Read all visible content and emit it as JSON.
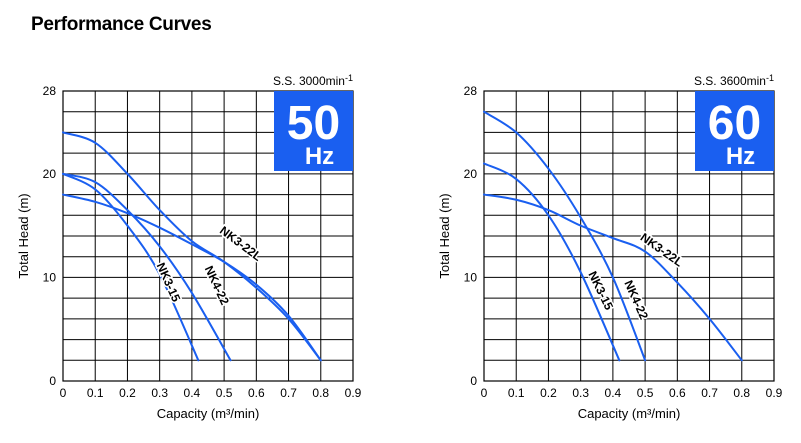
{
  "page": {
    "title": "Performance Curves"
  },
  "chart_data": [
    {
      "type": "line",
      "speed_label": "S.S. 3000min-1",
      "frequency_badge": {
        "value": "50",
        "unit": "Hz",
        "color": "#1a5ff0"
      },
      "xlabel": "Capacity (m³/min)",
      "ylabel": "Total Head (m)",
      "xlim": [
        0,
        0.9
      ],
      "ylim": [
        0,
        28
      ],
      "x_ticks": [
        "0",
        "0.1",
        "0.2",
        "0.3",
        "0.4",
        "0.5",
        "0.6",
        "0.7",
        "0.8",
        "0.9"
      ],
      "y_ticks": [
        {
          "value": 0,
          "label": "0"
        },
        {
          "value": 10,
          "label": "10"
        },
        {
          "value": 20,
          "label": "20"
        },
        {
          "value": 28,
          "label": "28"
        }
      ],
      "grid": true,
      "line_color": "#1a5ff0",
      "series": [
        {
          "name": "NK3-15",
          "label_at": [
            0.325,
            9.5
          ],
          "label_angle": 66,
          "x": [
            0,
            0.1,
            0.2,
            0.3,
            0.42
          ],
          "y": [
            20,
            18.5,
            15,
            10.3,
            2
          ]
        },
        {
          "name": "NK4-22",
          "label_at": [
            0.475,
            9.2
          ],
          "label_angle": 65,
          "x": [
            0,
            0.1,
            0.2,
            0.3,
            0.4,
            0.52
          ],
          "y": [
            20,
            19.2,
            16.5,
            13,
            8.5,
            2
          ]
        },
        {
          "name": "NK3-22L",
          "label_at": [
            0.55,
            13.2
          ],
          "label_angle": 37,
          "x": [
            0,
            0.1,
            0.2,
            0.3,
            0.4,
            0.5,
            0.6,
            0.7,
            0.8
          ],
          "y": [
            24,
            23,
            20,
            16.5,
            13.5,
            11.5,
            9,
            6,
            2
          ]
        },
        {
          "name": "",
          "x": [
            0,
            0.1,
            0.2,
            0.3,
            0.4,
            0.5,
            0.6,
            0.7,
            0.8
          ],
          "y": [
            18,
            17.3,
            16.2,
            14.8,
            13.2,
            11.5,
            9.3,
            6.3,
            2
          ]
        }
      ]
    },
    {
      "type": "line",
      "speed_label": "S.S. 3600min-1",
      "frequency_badge": {
        "value": "60",
        "unit": "Hz",
        "color": "#1a5ff0"
      },
      "xlabel": "Capacity (m³/min)",
      "ylabel": "Total Head (m)",
      "xlim": [
        0,
        0.9
      ],
      "ylim": [
        0,
        28
      ],
      "x_ticks": [
        "0",
        "0.1",
        "0.2",
        "0.3",
        "0.4",
        "0.5",
        "0.6",
        "0.7",
        "0.8",
        "0.9"
      ],
      "y_ticks": [
        {
          "value": 0,
          "label": "0"
        },
        {
          "value": 10,
          "label": "10"
        },
        {
          "value": 20,
          "label": "20"
        },
        {
          "value": 28,
          "label": "28"
        }
      ],
      "grid": true,
      "line_color": "#1a5ff0",
      "series": [
        {
          "name": "NK3-15",
          "label_at": [
            0.36,
            8.7
          ],
          "label_angle": 64,
          "x": [
            0,
            0.1,
            0.2,
            0.3,
            0.42
          ],
          "y": [
            21,
            19.5,
            16,
            10.5,
            2
          ]
        },
        {
          "name": "NK4-22",
          "label_at": [
            0.47,
            7.8
          ],
          "label_angle": 66,
          "x": [
            0,
            0.1,
            0.2,
            0.3,
            0.4,
            0.5
          ],
          "y": [
            26,
            24,
            20.5,
            15.8,
            10,
            2
          ]
        },
        {
          "name": "NK3-22L",
          "label_at": [
            0.55,
            12.6
          ],
          "label_angle": 35,
          "x": [
            0,
            0.1,
            0.2,
            0.3,
            0.4,
            0.5,
            0.6,
            0.7,
            0.8
          ],
          "y": [
            18,
            17.5,
            16.5,
            15,
            13.8,
            12.5,
            9.5,
            6,
            2
          ]
        }
      ]
    }
  ]
}
